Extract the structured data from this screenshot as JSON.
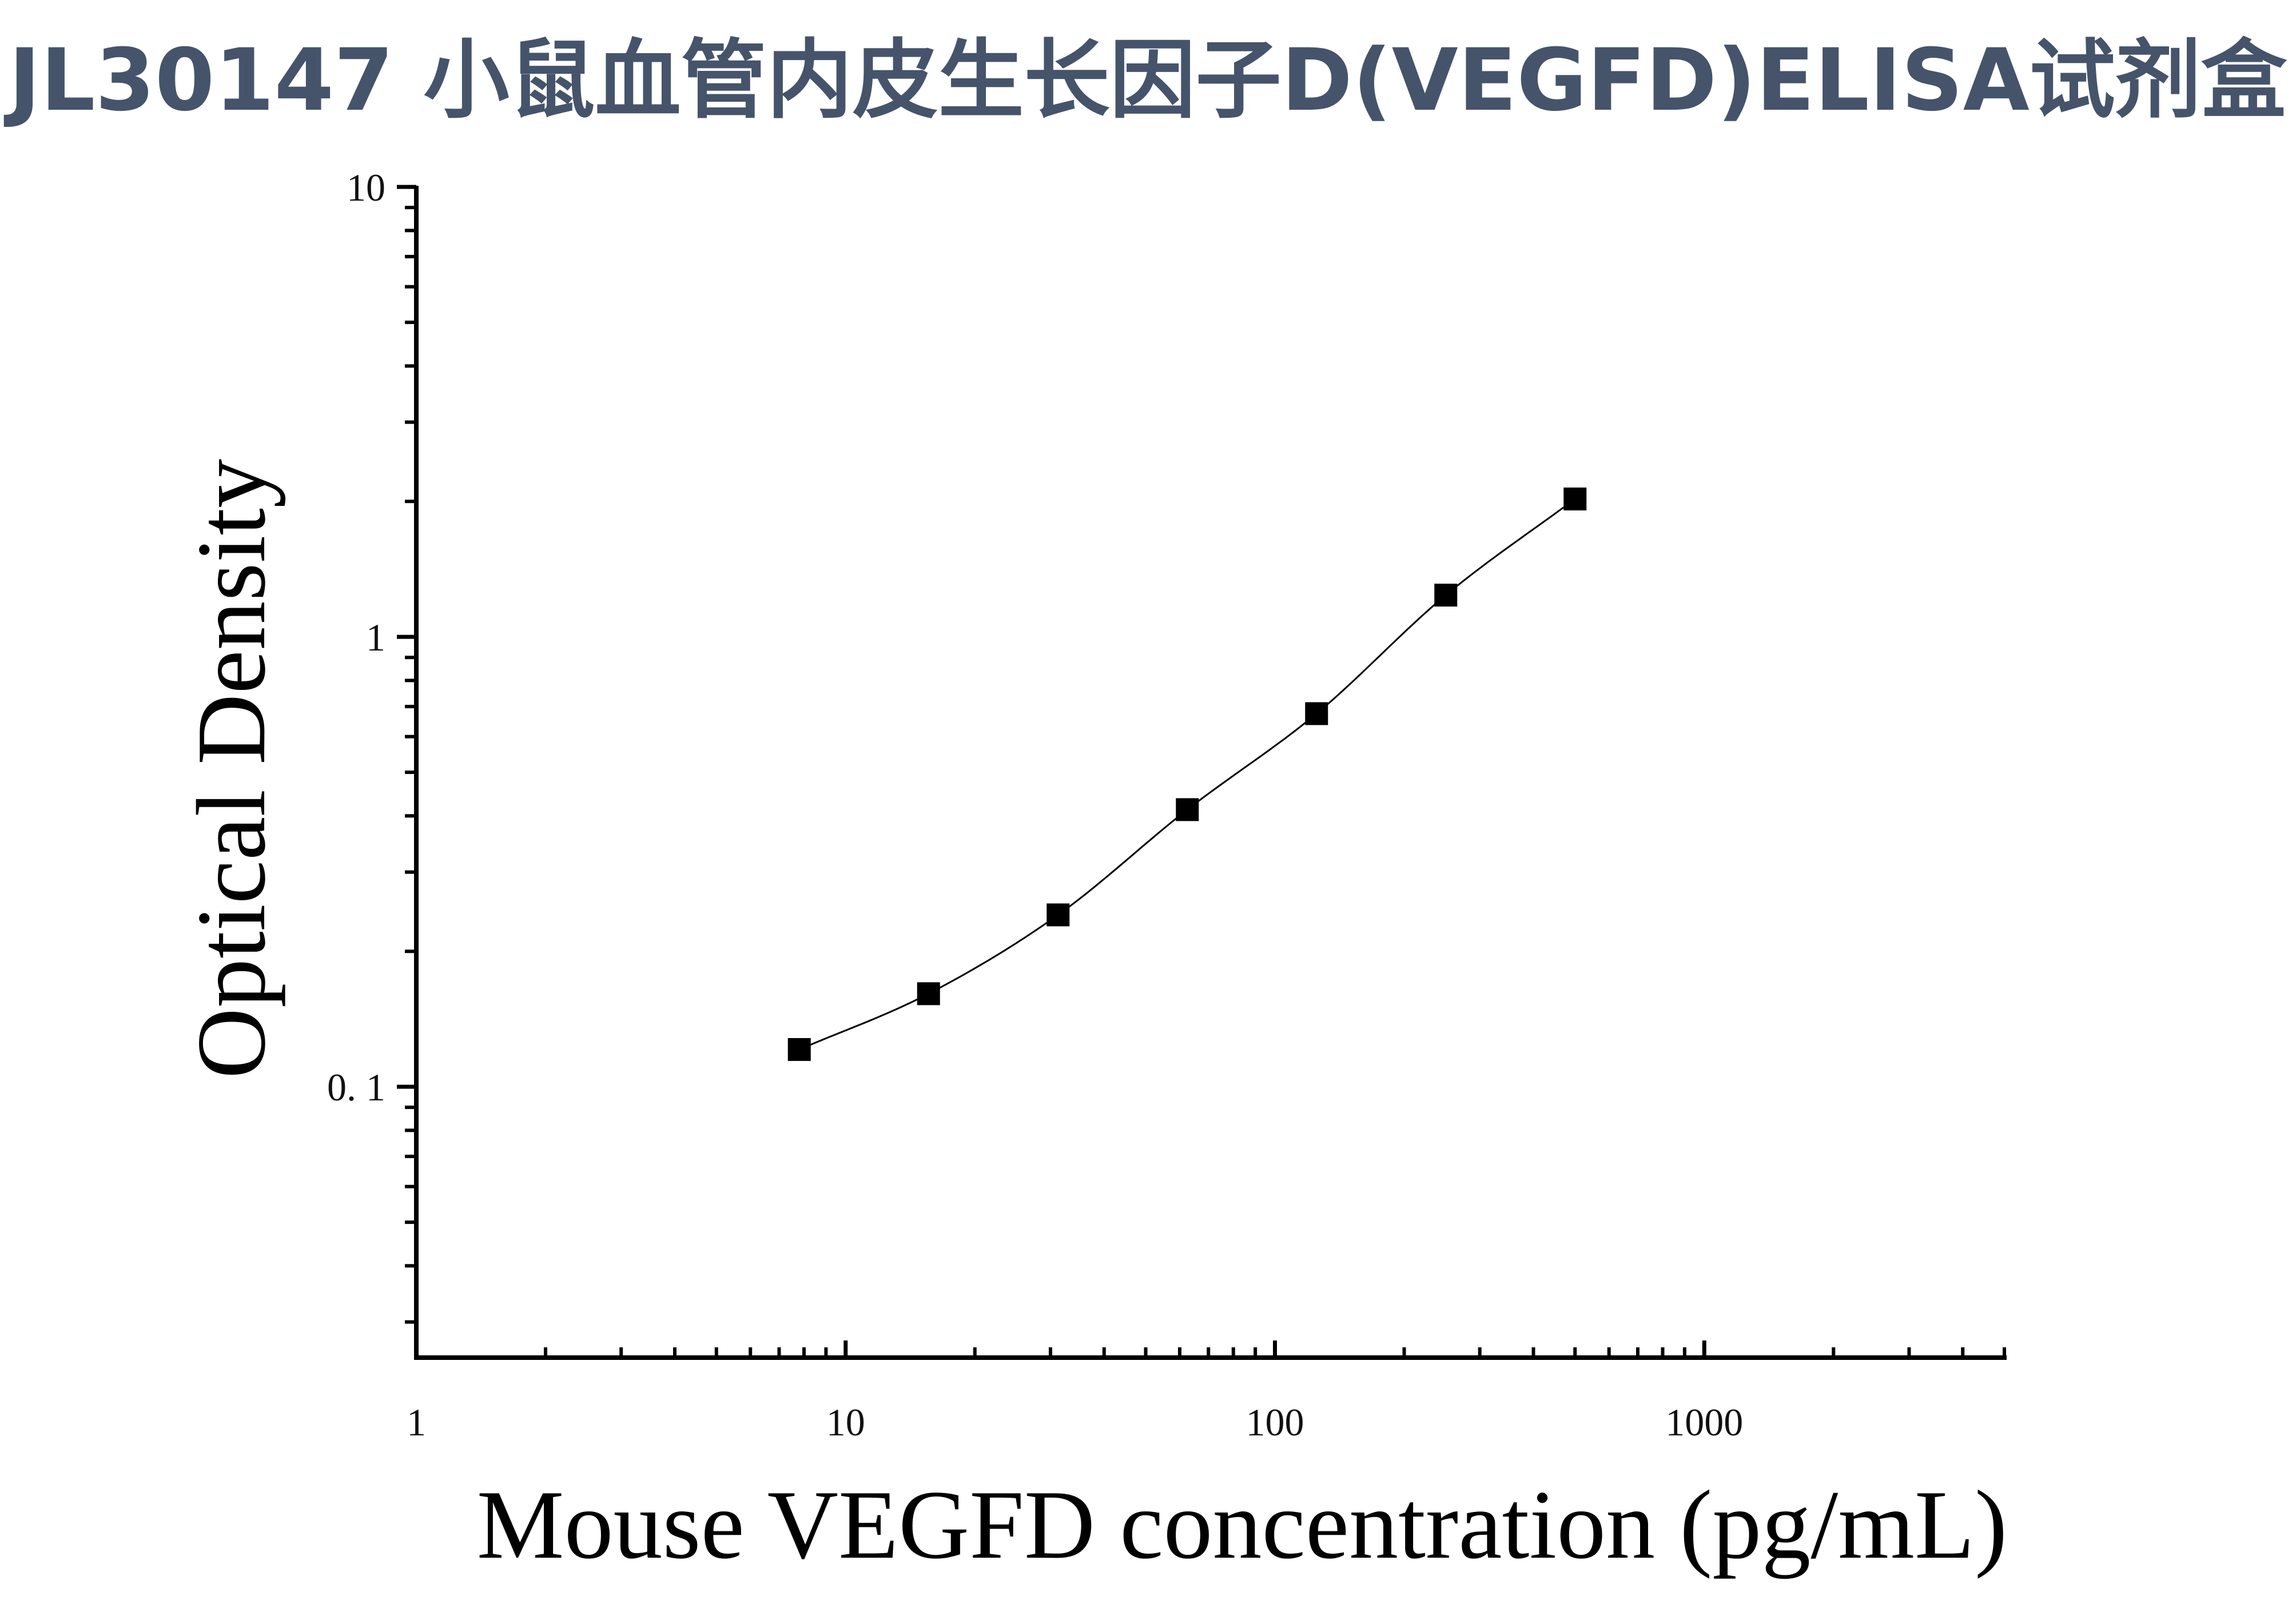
{
  "chart_data": {
    "type": "scatter",
    "title": "JL30147 小鼠血管内皮生长因子D(VEGFD)ELISA试剂盒",
    "xlabel": "Mouse VEGFD concentration (pg/mL)",
    "ylabel": "Optical Density",
    "x_scale": "log",
    "y_scale": "log",
    "xlim": [
      1,
      5000
    ],
    "ylim": [
      0.025,
      10
    ],
    "x_ticks": [
      1,
      10,
      100,
      1000
    ],
    "x_tick_labels": [
      "1",
      "10",
      "100",
      "1000"
    ],
    "y_ticks": [
      0.1,
      1,
      10
    ],
    "y_tick_labels": [
      "0. 1",
      "1",
      "10"
    ],
    "grid": false,
    "legend": "none",
    "series": [
      {
        "x": [
          7.8,
          15.6,
          31.25,
          62.5,
          125,
          250,
          500
        ],
        "y": [
          0.121,
          0.161,
          0.241,
          0.413,
          0.675,
          1.238,
          2.025
        ],
        "marker": "square",
        "fit_line": true
      }
    ],
    "colors": {
      "title": "#45536b",
      "axis": "#000000",
      "marker": "#000000"
    }
  }
}
